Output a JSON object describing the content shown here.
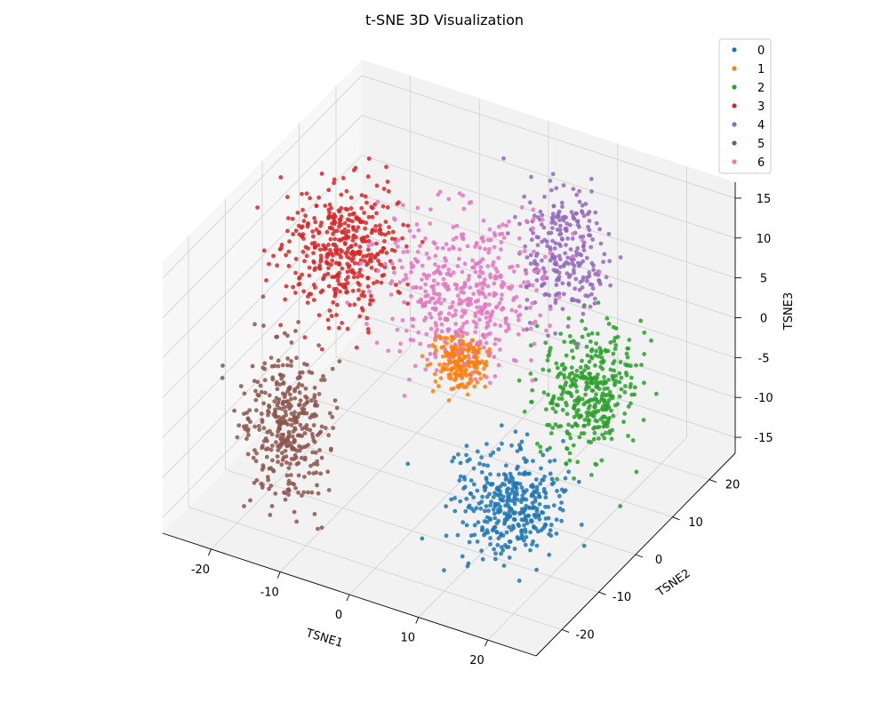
{
  "chart_data": {
    "type": "scatter",
    "projection": "3d",
    "title": "t-SNE 3D Visualization",
    "xlabel": "TSNE1",
    "ylabel": "TSNE2",
    "zlabel": "TSNE3",
    "xlim": [
      -27,
      27
    ],
    "ylim": [
      -27,
      27
    ],
    "zlim": [
      -17,
      17
    ],
    "xticks": [
      -20,
      -10,
      0,
      10,
      20
    ],
    "yticks": [
      -20,
      -10,
      0,
      10,
      20
    ],
    "zticks": [
      -15,
      -10,
      -5,
      0,
      5,
      10,
      15
    ],
    "grid": true,
    "legend_position": "top-right",
    "series": [
      {
        "name": "0",
        "color": "#1f77b4",
        "center": [
          12,
          -6,
          -12
        ],
        "spread": [
          5,
          5,
          4
        ],
        "count": 380
      },
      {
        "name": "1",
        "color": "#ff7f0e",
        "center": [
          0,
          3,
          -2
        ],
        "spread": [
          2.5,
          2.5,
          2.5
        ],
        "count": 220
      },
      {
        "name": "2",
        "color": "#2ca02c",
        "center": [
          14,
          12,
          -6
        ],
        "spread": [
          4,
          5,
          5
        ],
        "count": 380
      },
      {
        "name": "3",
        "color": "#d62728",
        "center": [
          -18,
          5,
          6
        ],
        "spread": [
          5,
          6,
          5
        ],
        "count": 420
      },
      {
        "name": "4",
        "color": "#9467bd",
        "center": [
          5,
          22,
          4
        ],
        "spread": [
          4,
          4,
          6
        ],
        "count": 260
      },
      {
        "name": "5",
        "color": "#8c564b",
        "center": [
          -17,
          -12,
          -8
        ],
        "spread": [
          4,
          4,
          7
        ],
        "count": 380
      },
      {
        "name": "6",
        "color": "#e377c2",
        "center": [
          -2,
          8,
          4
        ],
        "spread": [
          7,
          7,
          6
        ],
        "count": 460
      }
    ]
  }
}
